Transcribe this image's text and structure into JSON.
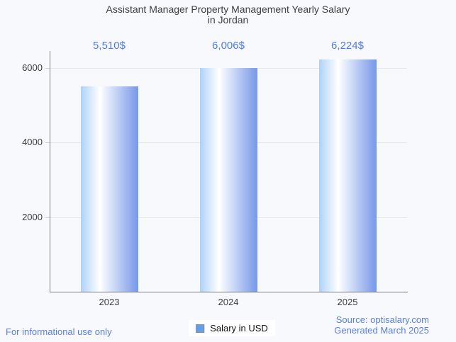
{
  "header": {
    "title_line1": "Assistant Manager Property Management Yearly Salary",
    "title_line2": "in Jordan"
  },
  "chart_data": {
    "type": "bar",
    "title": "Assistant Manager Property Management Yearly Salary in Jordan",
    "categories": [
      "2023",
      "2024",
      "2025"
    ],
    "values": [
      5510,
      6006,
      6224
    ],
    "value_labels": [
      "5,510$",
      "6,006$",
      "6,224$"
    ],
    "series_name": "Salary in USD",
    "xlabel": "",
    "ylabel": "",
    "ylim": [
      0,
      6450
    ],
    "yticks": [
      2000,
      4000,
      6000
    ],
    "grid": true,
    "legend_position": "bottom",
    "bar_gradient": [
      "#aed2fa",
      "#ffffff",
      "#7698e8"
    ]
  },
  "legend": {
    "label": "Salary in USD",
    "swatch_color": "#61a0f0"
  },
  "footer": {
    "disclaimer": "For informational use only",
    "source_line1": "Source: optisalary.com",
    "source_line2": "Generated March 2025"
  },
  "colors": {
    "background": "#f8f9fd",
    "title_text": "#3f3f3f",
    "axis_text": "#3d3d3d",
    "value_text": "#4e7ce4",
    "footer_text": "#5b7ede",
    "grid_line": "#e4e7ec",
    "axis_line": "#7d7d7d"
  }
}
